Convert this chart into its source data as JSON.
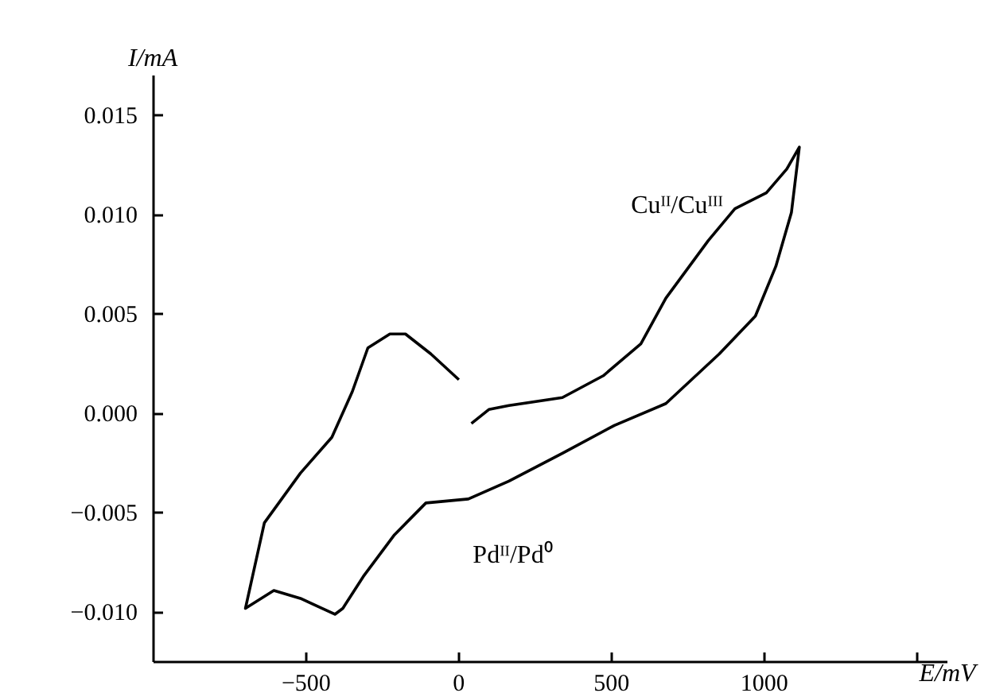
{
  "chart_data": {
    "type": "line",
    "xlabel": "E/mV",
    "ylabel": "I/mA",
    "xlim": [
      -1000,
      1600
    ],
    "ylim": [
      -0.0125,
      0.017
    ],
    "xticks": [
      {
        "value": -500,
        "label": "−500"
      },
      0,
      500,
      1000,
      {
        "value": 1500,
        "label": null
      }
    ],
    "yticks": [
      {
        "value": -0.01,
        "label": "−0.010"
      },
      {
        "value": -0.005,
        "label": "−0.005"
      },
      {
        "value": 0,
        "label": "0.000"
      },
      {
        "value": 0.005,
        "label": "0.005"
      },
      {
        "value": 0.01,
        "label": "0.010"
      },
      {
        "value": 0.015,
        "label": "0.015"
      }
    ],
    "grid": false,
    "marker": "none",
    "line_style": "solid",
    "series": [
      {
        "color": "#000000",
        "x": [
          41,
          98,
          164,
          339,
          473,
          596,
          678,
          817,
          904,
          1007,
          1074,
          1115,
          1089,
          1038,
          971,
          853,
          678,
          509,
          339,
          164,
          31,
          -108,
          -211,
          -313,
          -380,
          -406,
          -519,
          -606,
          -699,
          -637,
          -519,
          -416,
          -349,
          -298,
          -226,
          -175,
          -92,
          0
        ],
        "values": [
          -0.0005,
          0.0002,
          0.0004,
          0.0008,
          0.0019,
          0.0035,
          0.0058,
          0.0087,
          0.0103,
          0.0111,
          0.0123,
          0.0134,
          0.0101,
          0.0074,
          0.0049,
          0.003,
          0.0005,
          -0.0006,
          -0.002,
          -0.0034,
          -0.0043,
          -0.0045,
          -0.0061,
          -0.0082,
          -0.0098,
          -0.0101,
          -0.0093,
          -0.0089,
          -0.0098,
          -0.0055,
          -0.003,
          -0.0012,
          0.0011,
          0.0033,
          0.004,
          0.004,
          0.003,
          0.0017
        ]
      }
    ],
    "annotations": [
      "Cuᴵᴵ/Cuᴵᴵᴵ",
      "Pdᴵᴵ/Pd⁰"
    ]
  }
}
